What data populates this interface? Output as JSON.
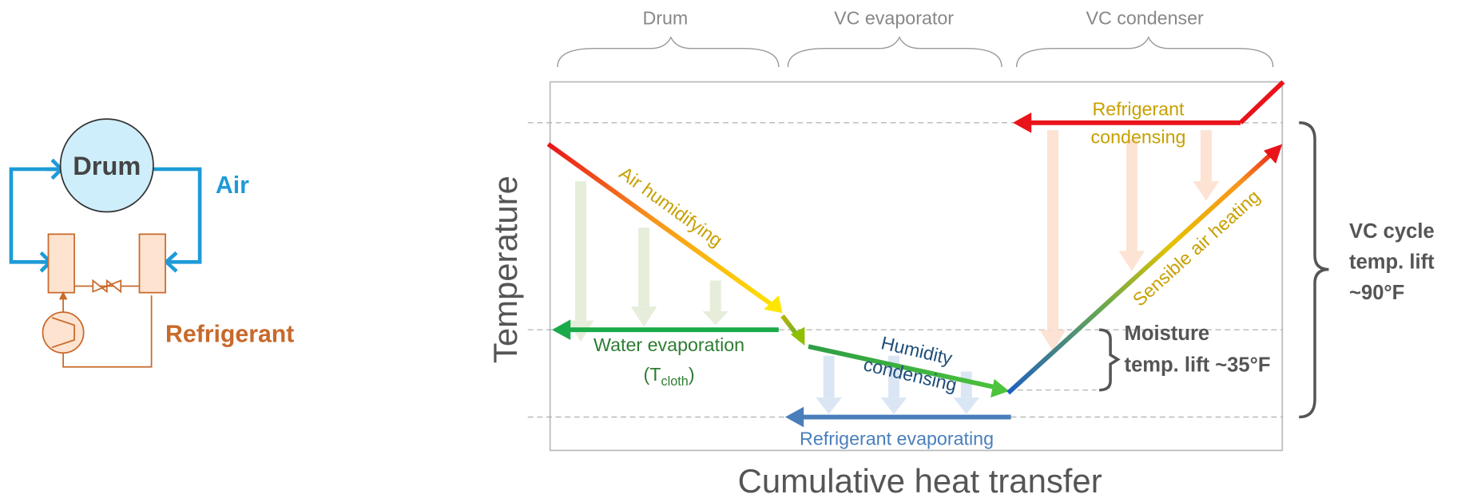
{
  "schematic": {
    "drum": "Drum",
    "air": "Air",
    "refrigerant": "Refrigerant"
  },
  "plot": {
    "sections": [
      "Drum",
      "VC evaporator",
      "VC condenser"
    ],
    "y_axis_label": "Temperature",
    "x_axis_label": "Cumulative heat transfer",
    "annotations": {
      "air_humidifying": "Air humidifying",
      "water_evaporation": "Water evaporation",
      "t_open": "(T",
      "t_sub": "cloth",
      "t_close": ")",
      "humidity": "Humidity",
      "condensing_air": "condensing",
      "refrigerant_evaporating": "Refrigerant evaporating",
      "refrigerant": "Refrigerant",
      "condensing_ref": "condensing",
      "sensible_air_heating": "Sensible air heating"
    },
    "moisture_lift": [
      "Moisture",
      "temp. lift ~35°F"
    ],
    "vc_lift": [
      "VC cycle",
      "temp. lift",
      "~90°F"
    ]
  }
}
